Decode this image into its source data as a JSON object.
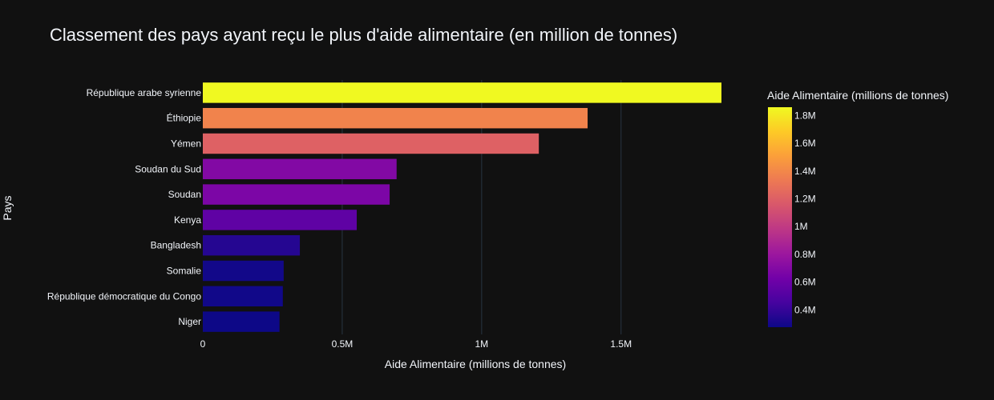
{
  "chart_data": {
    "type": "bar",
    "orientation": "horizontal",
    "title": "Classement des pays ayant reçu le plus d'aide alimentaire (en million de tonnes)",
    "xlabel": "Aide Alimentaire (millions de tonnes)",
    "ylabel": "Pays",
    "categories": [
      "République arabe syrienne",
      "Éthiopie",
      "Yémen",
      "Soudan du Sud",
      "Soudan",
      "Kenya",
      "Bangladesh",
      "Somalie",
      "République démocratique du Congo",
      "Niger"
    ],
    "values": [
      1860000,
      1380000,
      1205000,
      695000,
      670000,
      552000,
      348000,
      290000,
      287000,
      275000
    ],
    "xlim": [
      0,
      1860000
    ],
    "x_ticks": [
      {
        "value": 0,
        "label": "0"
      },
      {
        "value": 500000,
        "label": "0.5M"
      },
      {
        "value": 1000000,
        "label": "1M"
      },
      {
        "value": 1500000,
        "label": "1.5M"
      }
    ],
    "grid": true,
    "colorbar": {
      "title": "Aide Alimentaire (millions de tonnes)",
      "colorscale": "plasma",
      "cmin": 275000,
      "cmax": 1860000,
      "ticks": [
        {
          "value": 400000,
          "label": "0.4M"
        },
        {
          "value": 600000,
          "label": "0.6M"
        },
        {
          "value": 800000,
          "label": "0.8M"
        },
        {
          "value": 1000000,
          "label": "1M"
        },
        {
          "value": 1200000,
          "label": "1.2M"
        },
        {
          "value": 1400000,
          "label": "1.4M"
        },
        {
          "value": 1600000,
          "label": "1.6M"
        },
        {
          "value": 1800000,
          "label": "1.8M"
        }
      ],
      "placement": "right"
    },
    "colors": {
      "background": "#111111",
      "grid": "#283442",
      "text": "#f2f5fa",
      "plasma": [
        "#0d0887",
        "#46039f",
        "#7201a8",
        "#9c179e",
        "#bd3786",
        "#d8576b",
        "#ed7953",
        "#fb9f3a",
        "#fdca26",
        "#f0f921"
      ]
    }
  }
}
